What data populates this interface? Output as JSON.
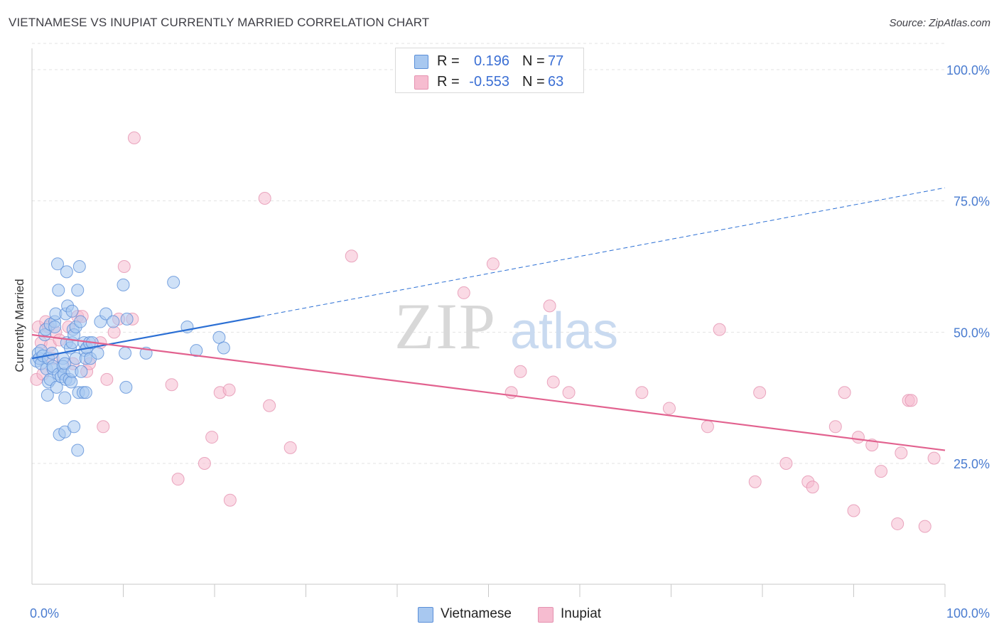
{
  "header": {
    "title": "VIETNAMESE VS INUPIAT CURRENTLY MARRIED CORRELATION CHART",
    "source": "Source: ZipAtlas.com"
  },
  "watermark": {
    "zip": "ZIP",
    "atlas": "atlas"
  },
  "legend": {
    "items": [
      {
        "r_label": "R =",
        "r_value": "0.196",
        "n_label": "N =",
        "n_value": "77"
      },
      {
        "r_label": "R =",
        "r_value": "-0.553",
        "n_label": "N =",
        "n_value": "63"
      }
    ]
  },
  "bottom_legend": {
    "vietnamese": "Vietnamese",
    "inupiat": "Inupiat"
  },
  "chart_data": {
    "type": "scatter",
    "title": "VIETNAMESE VS INUPIAT CURRENTLY MARRIED CORRELATION CHART",
    "xlabel": "",
    "ylabel": "Currently Married",
    "xlim": [
      0,
      100
    ],
    "ylim": [
      0,
      105
    ],
    "x_tick_labels": [
      "0.0%",
      "100.0%"
    ],
    "y_ticks": [
      25,
      50,
      75,
      100
    ],
    "y_tick_labels": [
      "25.0%",
      "50.0%",
      "75.0%",
      "100.0%"
    ],
    "grid": true,
    "colors": {
      "vietnamese_fill": "#a8c8f0",
      "vietnamese_stroke": "#5b8fd8",
      "vietnamese_line": "#2b6fd4",
      "inupiat_fill": "#f6bcd0",
      "inupiat_stroke": "#e592b0",
      "inupiat_line": "#e2628f",
      "tick_label": "#4a7cd0"
    },
    "series": [
      {
        "name": "Vietnamese",
        "points": [
          [
            0.5,
            44.5
          ],
          [
            0.7,
            46
          ],
          [
            0.8,
            45
          ],
          [
            1,
            46.5
          ],
          [
            1,
            44
          ],
          [
            1.2,
            45.5
          ],
          [
            1.4,
            49.5
          ],
          [
            1.5,
            50.5
          ],
          [
            1.6,
            43
          ],
          [
            1.7,
            38
          ],
          [
            1.8,
            40.5
          ],
          [
            1.8,
            45
          ],
          [
            2,
            51.5
          ],
          [
            2,
            41
          ],
          [
            2.2,
            46
          ],
          [
            2.3,
            43
          ],
          [
            2.3,
            43.5
          ],
          [
            2.5,
            52
          ],
          [
            2.5,
            51
          ],
          [
            2.6,
            53.5
          ],
          [
            2.7,
            39.5
          ],
          [
            2.9,
            58
          ],
          [
            2.9,
            42
          ],
          [
            2.8,
            63
          ],
          [
            3,
            30.5
          ],
          [
            3.2,
            41.5
          ],
          [
            3.4,
            45
          ],
          [
            3.4,
            43.5
          ],
          [
            3.5,
            42
          ],
          [
            3.6,
            37.5
          ],
          [
            3.6,
            44
          ],
          [
            3.7,
            41
          ],
          [
            3.7,
            53.5
          ],
          [
            3.6,
            31
          ],
          [
            3.8,
            61.5
          ],
          [
            3.8,
            48
          ],
          [
            3.9,
            55
          ],
          [
            4.1,
            41
          ],
          [
            4.2,
            47
          ],
          [
            4.3,
            40.5
          ],
          [
            4.4,
            42.5
          ],
          [
            4.5,
            50.5
          ],
          [
            4.4,
            54
          ],
          [
            4.4,
            48
          ],
          [
            4.6,
            49.5
          ],
          [
            4.6,
            32
          ],
          [
            4.8,
            45
          ],
          [
            4.8,
            51
          ],
          [
            5,
            58
          ],
          [
            5,
            27.5
          ],
          [
            5.1,
            38.5
          ],
          [
            5.2,
            62.5
          ],
          [
            5.3,
            52
          ],
          [
            5.4,
            42.5
          ],
          [
            5.6,
            38.5
          ],
          [
            5.7,
            48
          ],
          [
            5.8,
            46.5
          ],
          [
            5.9,
            38.5
          ],
          [
            5.9,
            45
          ],
          [
            6,
            47
          ],
          [
            6.3,
            48
          ],
          [
            6.4,
            45
          ],
          [
            6.6,
            48
          ],
          [
            7.2,
            46
          ],
          [
            7.5,
            52
          ],
          [
            8.1,
            53.5
          ],
          [
            8.9,
            52
          ],
          [
            10,
            59
          ],
          [
            10.2,
            46
          ],
          [
            10.3,
            39.5
          ],
          [
            10.4,
            52.5
          ],
          [
            12.5,
            46
          ],
          [
            15.5,
            59.5
          ],
          [
            17,
            51
          ],
          [
            18,
            46.5
          ],
          [
            20.5,
            49
          ],
          [
            21,
            47
          ]
        ]
      },
      {
        "name": "Inupiat",
        "points": [
          [
            0.5,
            41
          ],
          [
            0.7,
            51
          ],
          [
            1,
            48
          ],
          [
            1.2,
            42
          ],
          [
            1.5,
            52
          ],
          [
            1.8,
            51
          ],
          [
            2,
            47.5
          ],
          [
            2.3,
            45
          ],
          [
            2.6,
            50
          ],
          [
            3,
            48.5
          ],
          [
            4,
            51
          ],
          [
            4.5,
            44
          ],
          [
            5,
            53
          ],
          [
            5.5,
            53
          ],
          [
            6,
            42.5
          ],
          [
            6.3,
            44
          ],
          [
            7.5,
            48
          ],
          [
            7.8,
            32
          ],
          [
            8.2,
            41
          ],
          [
            9,
            50
          ],
          [
            9.5,
            52.5
          ],
          [
            10.1,
            62.5
          ],
          [
            11,
            52.5
          ],
          [
            11.2,
            87
          ],
          [
            15.3,
            40
          ],
          [
            16,
            22
          ],
          [
            18.9,
            25
          ],
          [
            19.7,
            30
          ],
          [
            20.6,
            38.5
          ],
          [
            21.6,
            39
          ],
          [
            21.7,
            18
          ],
          [
            25.5,
            75.5
          ],
          [
            26,
            36
          ],
          [
            28.3,
            28
          ],
          [
            35,
            64.5
          ],
          [
            47.3,
            57.5
          ],
          [
            50.5,
            63
          ],
          [
            52.5,
            38.5
          ],
          [
            53.5,
            42.5
          ],
          [
            56.7,
            55
          ],
          [
            57.1,
            40.5
          ],
          [
            58.8,
            38.5
          ],
          [
            66.8,
            38.5
          ],
          [
            69.8,
            35.5
          ],
          [
            74,
            32
          ],
          [
            75.3,
            50.5
          ],
          [
            79.2,
            21.5
          ],
          [
            79.7,
            38.5
          ],
          [
            82.6,
            25
          ],
          [
            85,
            21.5
          ],
          [
            85.5,
            20.5
          ],
          [
            88,
            32
          ],
          [
            89,
            38.5
          ],
          [
            90,
            16
          ],
          [
            90.5,
            30
          ],
          [
            92,
            28.5
          ],
          [
            93,
            23.5
          ],
          [
            94.8,
            13.5
          ],
          [
            95.2,
            27
          ],
          [
            96,
            37
          ],
          [
            96.3,
            37
          ],
          [
            97.8,
            13
          ],
          [
            98.8,
            26
          ]
        ]
      }
    ],
    "trend_lines": [
      {
        "series": "Vietnamese",
        "solid": [
          [
            0,
            45
          ],
          [
            25,
            53
          ]
        ],
        "dashed": [
          [
            25,
            53
          ],
          [
            100,
            77.5
          ]
        ]
      },
      {
        "series": "Inupiat",
        "solid": [
          [
            0,
            49.5
          ],
          [
            100,
            27.5
          ]
        ]
      }
    ]
  }
}
